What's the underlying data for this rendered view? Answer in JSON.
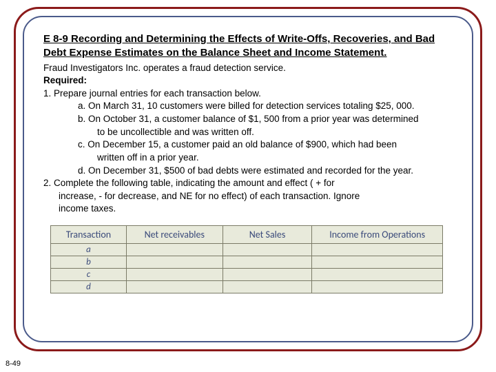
{
  "title": "E 8-9 Recording and Determining the Effects of Write-Offs, Recoveries, and Bad Debt Expense Estimates on the Balance Sheet and Income Statement.",
  "intro": "Fraud Investigators Inc. operates a fraud detection service.",
  "required_label": "Required:",
  "req1": "1.  Prepare journal entries for each transaction below.",
  "items": {
    "a": "a.   On March 31, 10 customers were billed for detection services totaling $25, 000.",
    "b1": "b.   On October 31, a customer balance of $1, 500 from a prior year was determined",
    "b2": "to be uncollectible and was written off.",
    "c1": "c.   On December 15, a customer paid an old balance of $900, which had been",
    "c2": "written off in a prior year.",
    "d": "d.   On December 31, $500 of bad debts were estimated and recorded for the year."
  },
  "req2a": "2. Complete the following table, indicating the amount and effect ( + for",
  "req2b": "increase,  - for decrease, and NE for no effect) of each transaction. Ignore",
  "req2c": "income taxes.",
  "table": {
    "headers": [
      "Transaction",
      "Net receivables",
      "Net Sales",
      "Income from Operations"
    ],
    "rows": [
      "a",
      "b",
      "c",
      "d"
    ]
  },
  "page_number": "8-49",
  "colors": {
    "outer_border": "#8b1a1a",
    "inner_border": "#4a5a8a",
    "table_bg": "#e8eadb",
    "table_text": "#3a4a7a",
    "table_border": "#7a7a66"
  }
}
